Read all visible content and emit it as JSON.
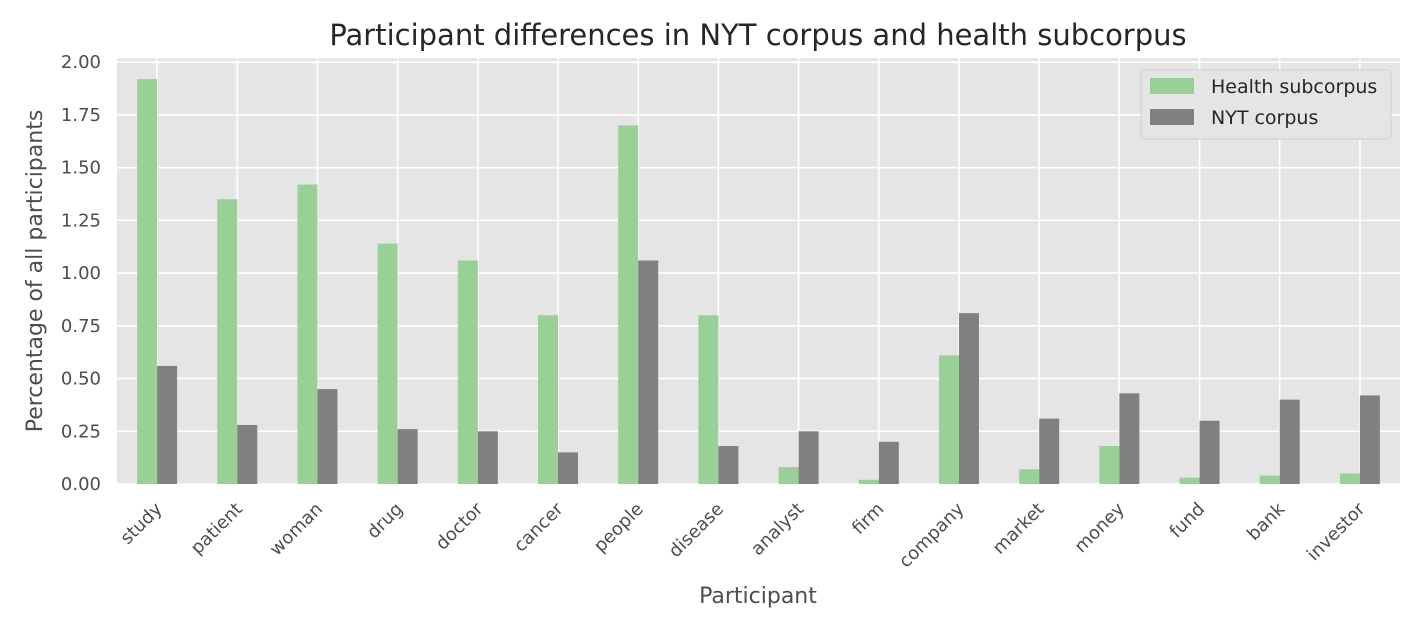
{
  "chart_data": {
    "type": "bar",
    "title": "Participant differences in NYT corpus and health subcorpus",
    "xlabel": "Participant",
    "ylabel": "Percentage of all participants",
    "categories": [
      "study",
      "patient",
      "woman",
      "drug",
      "doctor",
      "cancer",
      "people",
      "disease",
      "analyst",
      "firm",
      "company",
      "market",
      "money",
      "fund",
      "bank",
      "investor"
    ],
    "series": [
      {
        "name": "Health subcorpus",
        "color": "#98d098",
        "values": [
          1.92,
          1.35,
          1.42,
          1.14,
          1.06,
          0.8,
          1.7,
          0.8,
          0.08,
          0.02,
          0.61,
          0.07,
          0.18,
          0.03,
          0.04,
          0.05
        ]
      },
      {
        "name": "NYT corpus",
        "color": "#808080",
        "values": [
          0.56,
          0.28,
          0.45,
          0.26,
          0.25,
          0.15,
          1.06,
          0.18,
          0.25,
          0.2,
          0.81,
          0.31,
          0.43,
          0.3,
          0.4,
          0.42
        ]
      }
    ],
    "ylim": [
      0,
      2.02
    ],
    "yticks": [
      "0.00",
      "0.25",
      "0.50",
      "0.75",
      "1.00",
      "1.25",
      "1.50",
      "1.75",
      "2.00"
    ],
    "grid": true,
    "legend_position": "top-right",
    "background_color": "#e5e5e5"
  }
}
